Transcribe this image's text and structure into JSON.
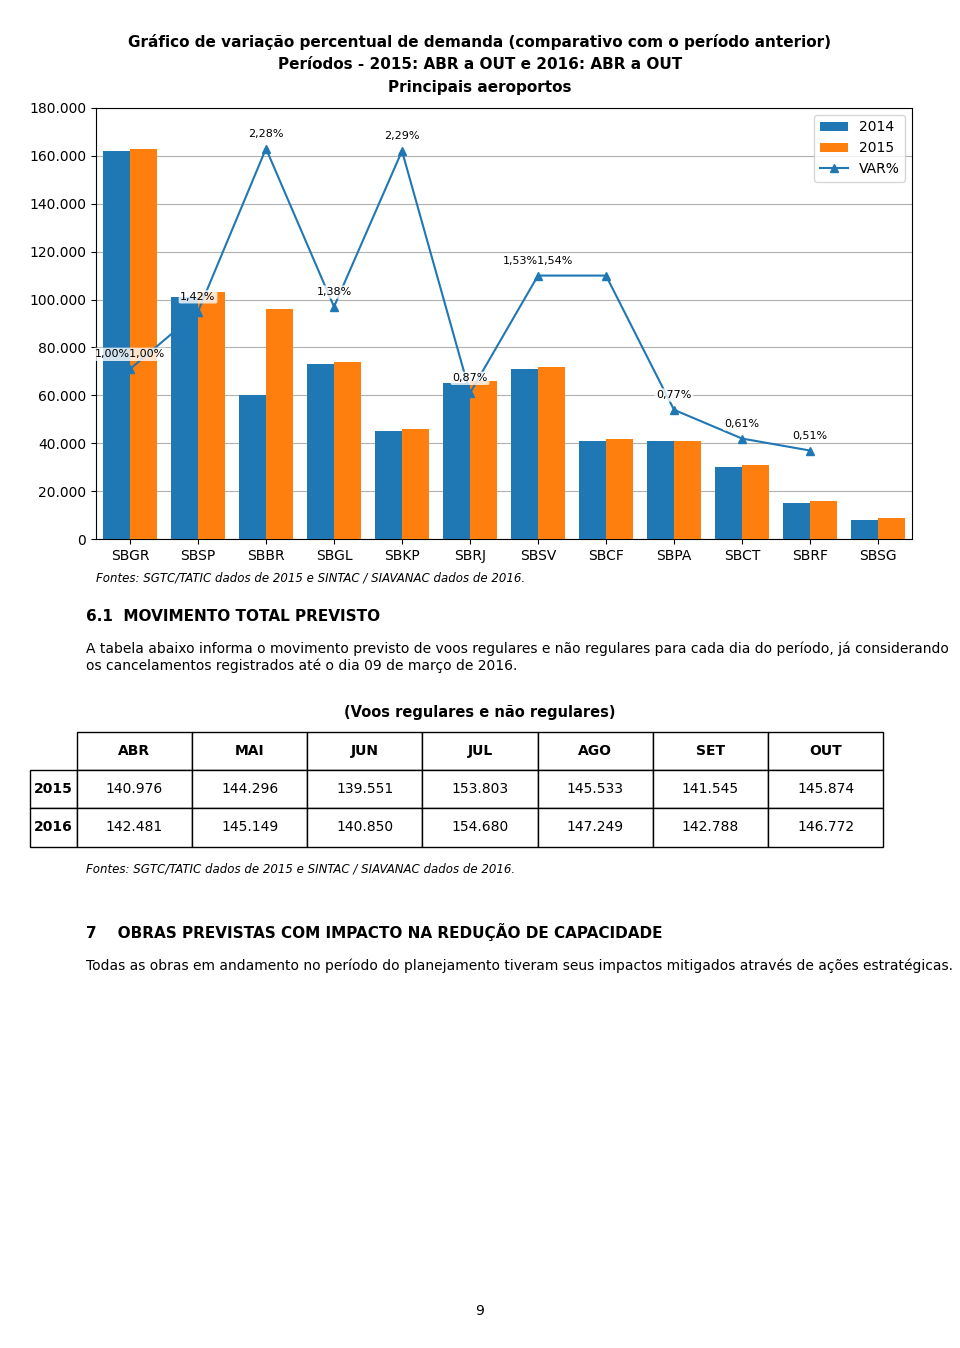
{
  "chart_data": {
    "type": "bar",
    "title": "Gráfico de variação percentual de demanda (comparativo com o período anterior)",
    "subtitle": [
      "Períodos - 2015: ABR a OUT e 2016: ABR a OUT",
      "Principais aeroportos"
    ],
    "categories": [
      "SBGR",
      "SBSP",
      "SBBR",
      "SBGL",
      "SBKP",
      "SBRJ",
      "SBSV",
      "SBCF",
      "SBPA",
      "SBCT",
      "SBRF",
      "SBSG"
    ],
    "series": [
      {
        "name": "2014",
        "type": "bar",
        "values": [
          162000,
          101000,
          60000,
          73000,
          45000,
          65000,
          71000,
          41000,
          41000,
          30000,
          15000,
          8000
        ]
      },
      {
        "name": "2015",
        "type": "bar",
        "values": [
          163000,
          103000,
          96000,
          74000,
          46000,
          66000,
          72000,
          42000,
          41000,
          31000,
          16000,
          9000
        ]
      },
      {
        "name": "VAR%",
        "type": "line",
        "marker": "^",
        "values": [
          71000,
          95000,
          163000,
          97000,
          162000,
          61000,
          110000,
          110000,
          54000,
          42000,
          37000,
          null
        ]
      }
    ],
    "annotations": [
      {
        "text": "1,00%1,00%",
        "x": "SBGR",
        "y": 71000
      },
      {
        "text": "1,42%",
        "x": "SBSP",
        "y": 95000
      },
      {
        "text": "2,28%",
        "x": "SBBR",
        "y": 163000
      },
      {
        "text": "1,38%",
        "x": "SBGL",
        "y": 97000
      },
      {
        "text": "2,29%",
        "x": "SBKP",
        "y": 162000
      },
      {
        "text": "0,87%",
        "x": "SBRJ",
        "y": 61000
      },
      {
        "text": "1,53%1,54%",
        "x": "SBSV",
        "y": 110000
      },
      {
        "text": "0,77%",
        "x": "SBPA",
        "y": 54000
      },
      {
        "text": "0,61%",
        "x": "SBCT",
        "y": 42000
      },
      {
        "text": "0,51%",
        "x": "SBRF",
        "y": 37000
      }
    ],
    "ylim": [
      0,
      180000
    ],
    "yticks": [
      0,
      {
        "value": 20000,
        "label": "20.000"
      },
      {
        "value": 40000,
        "label": "40.000"
      },
      {
        "value": 60000,
        "label": "60.000"
      },
      {
        "value": 80000,
        "label": "80.000"
      },
      {
        "value": 100000,
        "label": "100.000"
      },
      {
        "value": 120000,
        "label": "120.000"
      },
      {
        "value": 140000,
        "label": "140.000"
      },
      {
        "value": 160000,
        "label": "160.000"
      },
      {
        "value": 180000,
        "label": "180.000"
      }
    ],
    "grid": "y",
    "legend": "upper right"
  },
  "page": {
    "source": "Fontes: SGTC/TATIC dados de 2015 e SINTAC / SIAVANAC dados de 2016.",
    "section_title": "6.1  MOVIMENTO TOTAL PREVISTO",
    "section_text": "A tabela abaixo informa o movimento previsto de voos regulares e não regulares para cada dia do período, já considerando os cancelamentos registrados até o dia 09 de março de 2016.",
    "table": {
      "title": "(Voos regulares e não regulares)",
      "header": [
        "ABR",
        "MAI",
        "JUN",
        "JUL",
        "AGO",
        "SET",
        "OUT"
      ],
      "rows": [
        {
          "label": "2015",
          "values": [
            "140.976",
            "144.296",
            "139.551",
            "153.803",
            "145.533",
            "141.545",
            "145.874"
          ]
        },
        {
          "label": "2016",
          "values": [
            "142.481",
            "145.149",
            "140.850",
            "154.680",
            "147.249",
            "142.788",
            "146.772"
          ]
        }
      ]
    },
    "table_source": "Fontes: SGTC/TATIC dados de 2015 e SINTAC / SIAVANAC dados de 2016.",
    "section2_title": "7    OBRAS PREVISTAS COM IMPACTO NA REDUÇÃO DE CAPACIDADE",
    "section2_text": "Todas as obras em andamento no período do planejamento tiveram seus impactos mitigados através de ações estratégicas.",
    "page_number": "9"
  }
}
